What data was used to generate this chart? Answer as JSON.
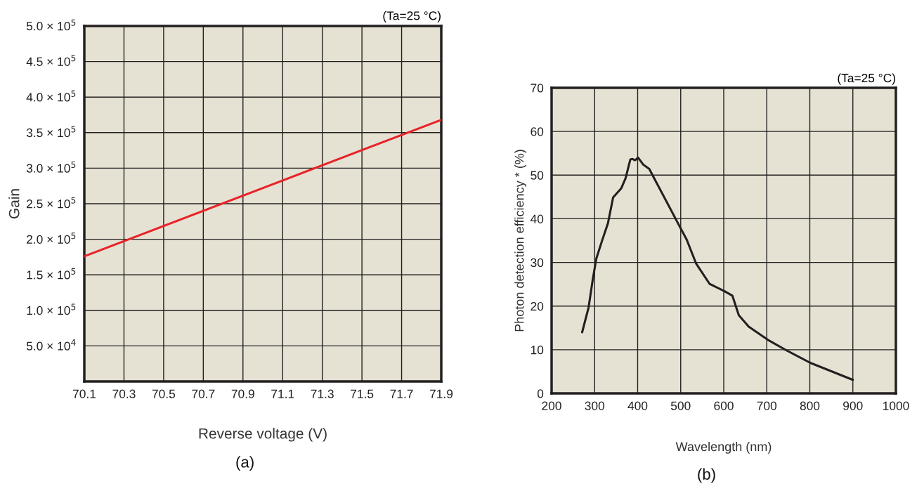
{
  "chart_data": [
    {
      "type": "line",
      "subtitle": "(Ta=25 °C)",
      "xlabel": "Reverse voltage (V)",
      "ylabel": "Gain",
      "annotations": [
        "(a)"
      ],
      "x": [
        70.1,
        71.9
      ],
      "series": [
        {
          "color": "#e8232a",
          "values": [
            176000,
            368000
          ]
        }
      ],
      "xlim": [
        70.1,
        71.9
      ],
      "xticks": [
        70.1,
        70.3,
        70.5,
        70.7,
        70.9,
        71.1,
        71.3,
        71.5,
        71.7,
        71.9
      ],
      "ylim": [
        0,
        500000
      ],
      "yticks": [
        {
          "value": 50000,
          "label": "5.0 × 10$^{4}$"
        },
        {
          "value": 100000,
          "label": "1.0 × 10$^{5}$"
        },
        {
          "value": 150000,
          "label": "1.5 × 10$^{5}$"
        },
        {
          "value": 200000,
          "label": "2.0 × 10$^{5}$"
        },
        {
          "value": 250000,
          "label": "2.5 × 10$^{5}$"
        },
        {
          "value": 300000,
          "label": "3.0 × 10$^{5}$"
        },
        {
          "value": 350000,
          "label": "3.5 × 10$^{5}$"
        },
        {
          "value": 400000,
          "label": "4.0 × 10$^{5}$"
        },
        {
          "value": 450000,
          "label": "4.5 × 10$^{5}$"
        },
        {
          "value": 500000,
          "label": "5.0 × 10$^{5}$"
        }
      ],
      "grid": true,
      "legend": false
    },
    {
      "type": "line",
      "subtitle": "(Ta=25 °C)",
      "xlabel": "Wavelength (nm)",
      "ylabel": "Photon detection efficiency * (%)",
      "annotations": [
        "(b)"
      ],
      "x": [
        271,
        286,
        296,
        304,
        317,
        331,
        343,
        362,
        372,
        383,
        388,
        394,
        401,
        413,
        427,
        500,
        514,
        536,
        567,
        602,
        620,
        635,
        658,
        702,
        745,
        801,
        900
      ],
      "series": [
        {
          "color": "#231f20",
          "values": [
            14.0,
            19.7,
            26.3,
            30.9,
            34.9,
            39.0,
            44.9,
            47.0,
            49.3,
            53.6,
            53.7,
            53.4,
            54.0,
            52.4,
            51.4,
            37.8,
            35.2,
            29.7,
            25.1,
            23.4,
            22.4,
            17.9,
            15.3,
            12.3,
            9.9,
            7.0,
            3.1
          ]
        }
      ],
      "xlim": [
        200,
        1000
      ],
      "xticks": [
        200,
        300,
        400,
        500,
        600,
        700,
        800,
        900,
        1000
      ],
      "ylim": [
        0,
        70
      ],
      "yticks": [
        0,
        10,
        20,
        30,
        40,
        50,
        60,
        70
      ],
      "grid": true,
      "legend": false
    }
  ]
}
